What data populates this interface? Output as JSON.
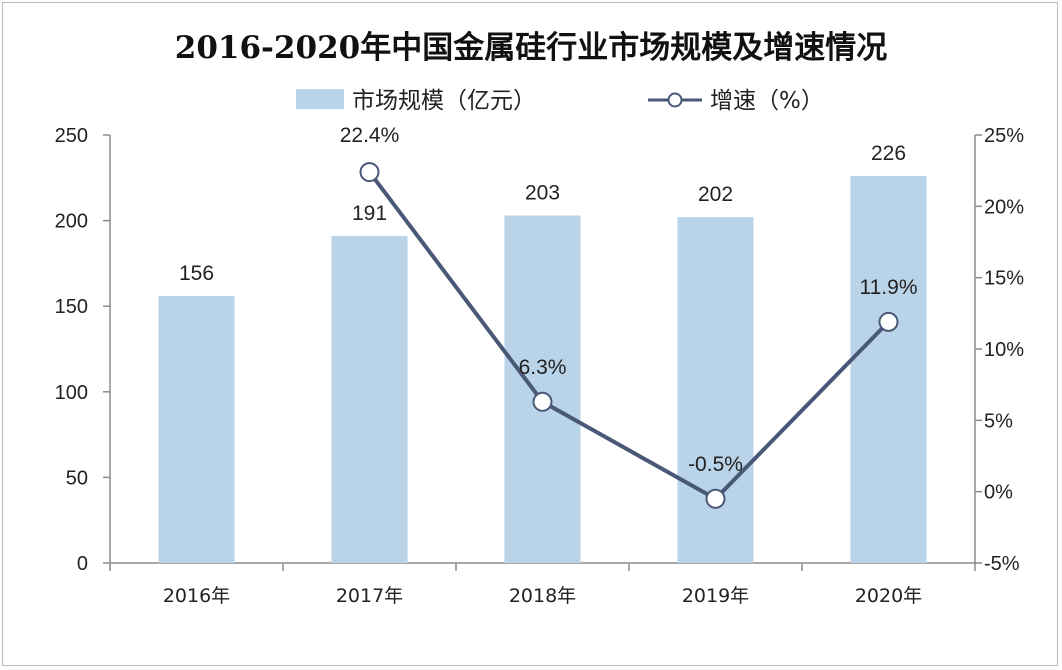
{
  "chart_data": {
    "type": "bar",
    "title": "2016-2020年中国金属硅行业市场规模及增速情况",
    "categories": [
      "2016年",
      "2017年",
      "2018年",
      "2019年",
      "2020年"
    ],
    "series": [
      {
        "name": "市场规模（亿元）",
        "type": "bar",
        "axis": "left",
        "values": [
          156,
          191,
          203,
          202,
          226
        ],
        "labels": [
          "156",
          "191",
          "203",
          "202",
          "226"
        ],
        "color": "#b9d3e8"
      },
      {
        "name": "增速（%）",
        "type": "line",
        "axis": "right",
        "values": [
          null,
          22.4,
          6.3,
          -0.5,
          11.9
        ],
        "labels": [
          "",
          "22.4%",
          "6.3%",
          "-0.5%",
          "11.9%"
        ],
        "color": "#4a5878"
      }
    ],
    "left_axis": {
      "min": 0,
      "max": 250,
      "step": 50,
      "ticks": [
        "0",
        "50",
        "100",
        "150",
        "200",
        "250"
      ]
    },
    "right_axis": {
      "min": -5,
      "max": 25,
      "step": 5,
      "ticks": [
        "-5%",
        "0%",
        "5%",
        "10%",
        "15%",
        "20%",
        "25%"
      ]
    },
    "grid": false,
    "legend_position": "top"
  }
}
